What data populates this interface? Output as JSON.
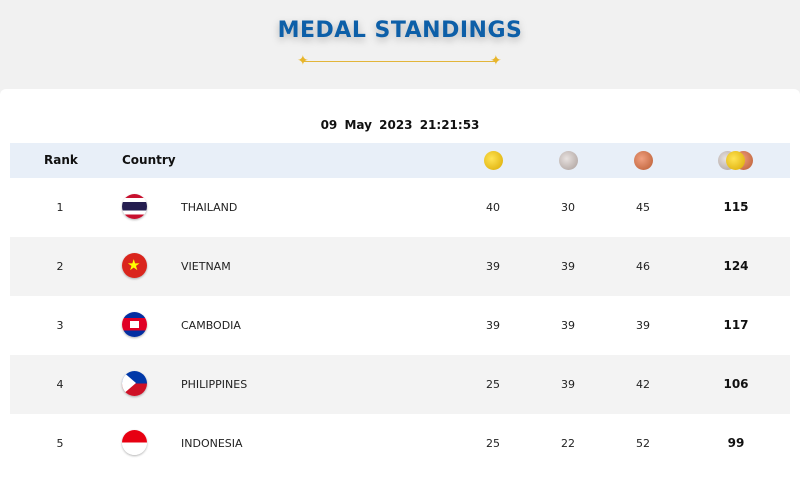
{
  "header": {
    "title": "MEDAL STANDINGS"
  },
  "date": "09 May 2023  21:21:53",
  "columns": {
    "rank": "Rank",
    "country": "Country",
    "gold_icon": "gold-medal-icon",
    "silver_icon": "silver-medal-icon",
    "bronze_icon": "bronze-medal-icon",
    "total_icon": "total-medals-icon"
  },
  "rows": [
    {
      "rank": "1",
      "country": "THAILAND",
      "gold": "40",
      "silver": "30",
      "bronze": "45",
      "total": "115",
      "flag": "thailand-flag-icon"
    },
    {
      "rank": "2",
      "country": "VIETNAM",
      "gold": "39",
      "silver": "39",
      "bronze": "46",
      "total": "124",
      "flag": "vietnam-flag-icon"
    },
    {
      "rank": "3",
      "country": "CAMBODIA",
      "gold": "39",
      "silver": "39",
      "bronze": "39",
      "total": "117",
      "flag": "cambodia-flag-icon"
    },
    {
      "rank": "4",
      "country": "PHILIPPINES",
      "gold": "25",
      "silver": "39",
      "bronze": "42",
      "total": "106",
      "flag": "philippines-flag-icon"
    },
    {
      "rank": "5",
      "country": "INDONESIA",
      "gold": "25",
      "silver": "22",
      "bronze": "52",
      "total": "99",
      "flag": "indonesia-flag-icon"
    }
  ],
  "colors": {
    "title": "#0d5fa8",
    "accent": "#e2b53a",
    "header_bg": "#e8eff8"
  }
}
